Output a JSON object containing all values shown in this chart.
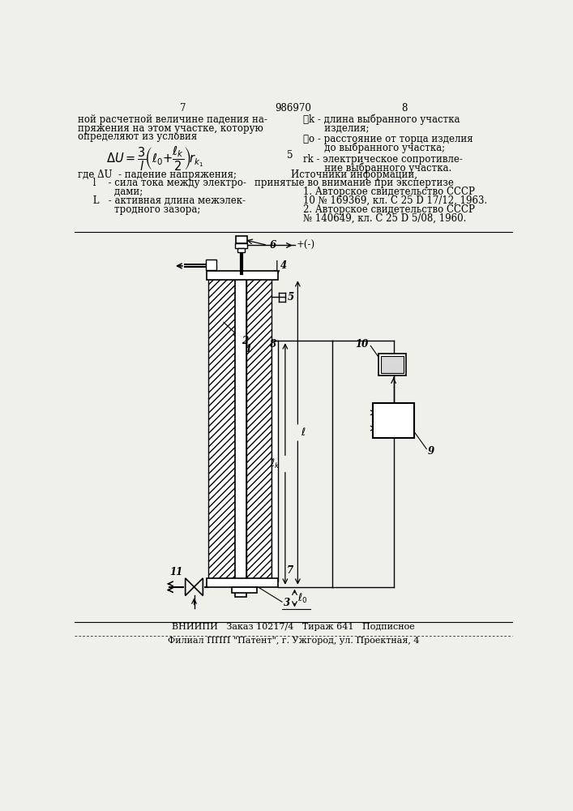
{
  "page_num_left": "7",
  "page_num_center": "986970",
  "page_num_right": "8",
  "left_col_lines": [
    "ной расчетной величине падения на-",
    "пряжения на этом участке, которую",
    "определяют из условия"
  ],
  "where_lines": [
    "где ΔU  - падение напряжения;",
    "     l    - сила тока между электро-",
    "            дами;",
    "     L   - активная длина межэлек-",
    "            тродного зазора;"
  ],
  "right_col_lines": [
    "ℓk - длина выбранного участка",
    "       изделия;",
    "ℓo - расстояние от торца изделия",
    "       до выбранного участка;",
    "rk - электрическое сопротивле-",
    "       ние выбранного участка."
  ],
  "sources_header1": "Источники информации,",
  "sources_header2": "принятые во внимание при экспертизе",
  "sources": [
    "1. Авторское свидетельство СССР",
    "10 № 169369, кл. C 25 D 17/12, 1963.",
    "2. Авторское свидетельство СССР",
    "№ 140649, кл. C 25 D 5/08, 1960."
  ],
  "mid_number": "5",
  "footer1": "ВНИИПИ   Заказ 10217/4   Тираж 641   Подписное",
  "footer2": "Филиал ППП \"Патент\", г. Ужгород, ул. Проектная, 4",
  "bg_color": "#f0f0eb"
}
